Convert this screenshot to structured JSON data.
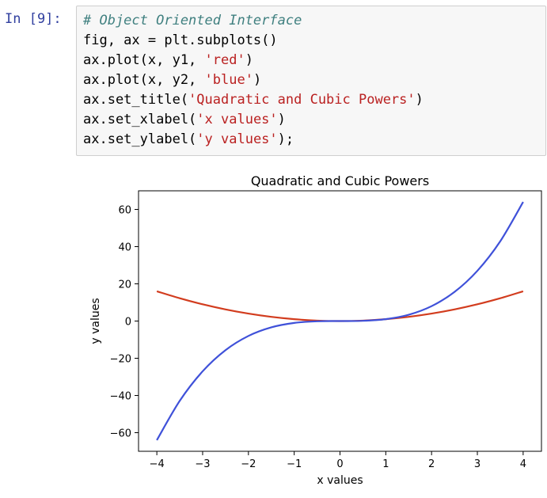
{
  "cell": {
    "prompt": "In [9]:",
    "lines": [
      {
        "parts": [
          {
            "text": "# Object Oriented Interface",
            "cls": "cm-comment"
          }
        ]
      },
      {
        "parts": [
          {
            "text": "fig, ax = plt.subplots()",
            "cls": ""
          }
        ]
      },
      {
        "parts": [
          {
            "text": "ax.plot(x, y1, ",
            "cls": ""
          },
          {
            "text": "'red'",
            "cls": "cm-string"
          },
          {
            "text": ")",
            "cls": ""
          }
        ]
      },
      {
        "parts": [
          {
            "text": "ax.plot(x, y2, ",
            "cls": ""
          },
          {
            "text": "'blue'",
            "cls": "cm-string"
          },
          {
            "text": ")",
            "cls": ""
          }
        ]
      },
      {
        "parts": [
          {
            "text": "ax.set_title(",
            "cls": ""
          },
          {
            "text": "'Quadratic and Cubic Powers'",
            "cls": "cm-string"
          },
          {
            "text": ")",
            "cls": ""
          }
        ]
      },
      {
        "parts": [
          {
            "text": "ax.set_xlabel(",
            "cls": ""
          },
          {
            "text": "'x values'",
            "cls": "cm-string"
          },
          {
            "text": ")",
            "cls": ""
          }
        ]
      },
      {
        "parts": [
          {
            "text": "ax.set_ylabel(",
            "cls": ""
          },
          {
            "text": "'y values'",
            "cls": "cm-string"
          },
          {
            "text": ");",
            "cls": ""
          }
        ]
      }
    ]
  },
  "chart_data": {
    "type": "line",
    "title": "Quadratic and Cubic Powers",
    "xlabel": "x values",
    "ylabel": "y values",
    "xlim": [
      -4.4,
      4.4
    ],
    "ylim": [
      -70,
      70
    ],
    "xticks": [
      -4,
      -3,
      -2,
      -1,
      0,
      1,
      2,
      3,
      4
    ],
    "xtick_labels": [
      "−4",
      "−3",
      "−2",
      "−1",
      "0",
      "1",
      "2",
      "3",
      "4"
    ],
    "yticks": [
      -60,
      -40,
      -20,
      0,
      20,
      40,
      60
    ],
    "ytick_labels": [
      "−60",
      "−40",
      "−20",
      "0",
      "20",
      "40",
      "60"
    ],
    "grid": false,
    "x": [
      -4,
      -3.5,
      -3,
      -2.5,
      -2,
      -1.5,
      -1,
      -0.5,
      0,
      0.5,
      1,
      1.5,
      2,
      2.5,
      3,
      3.5,
      4
    ],
    "series": [
      {
        "color": "#d23c1e",
        "values": [
          16,
          12.25,
          9,
          6.25,
          4,
          2.25,
          1,
          0.25,
          0,
          0.25,
          1,
          2.25,
          4,
          6.25,
          9,
          12.25,
          16
        ]
      },
      {
        "color": "#3f51d9",
        "values": [
          -64,
          -42.875,
          -27,
          -15.625,
          -8,
          -3.375,
          -1,
          -0.125,
          0,
          0.125,
          1,
          3.375,
          8,
          15.625,
          27,
          42.875,
          64
        ]
      }
    ]
  }
}
